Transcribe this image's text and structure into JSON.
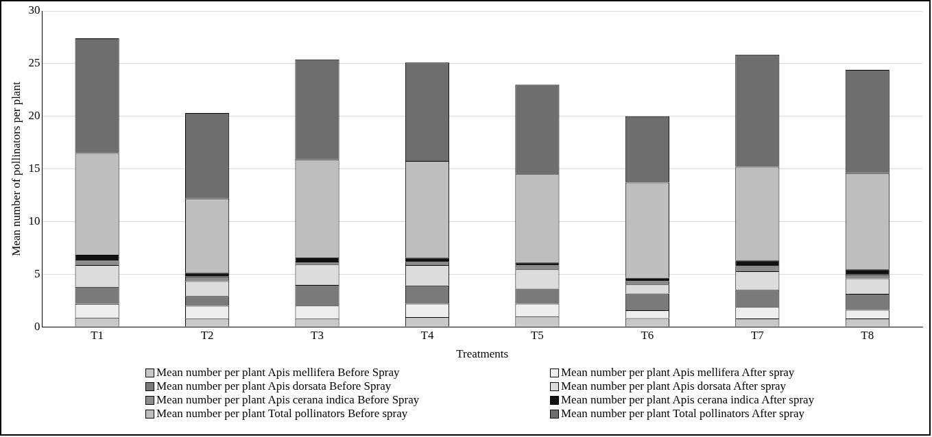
{
  "chart_data": {
    "type": "bar",
    "stacked": true,
    "xlabel": "Treatments",
    "ylabel": "Mean number of pollinators per plant",
    "categories": [
      "T1",
      "T2",
      "T3",
      "T4",
      "T5",
      "T6",
      "T7",
      "T8"
    ],
    "ylim": [
      0,
      30
    ],
    "yticks": [
      0,
      5,
      10,
      15,
      20,
      25,
      30
    ],
    "grid": "y",
    "legend": "bottom",
    "series": [
      {
        "name": "Mean number per plant Apis mellifera Before Spray",
        "color": "#c8c8c8",
        "values": [
          0.87,
          0.78,
          0.78,
          0.92,
          1.0,
          0.83,
          0.8,
          0.8
        ]
      },
      {
        "name": "Mean number per plant Apis mellifera After spray",
        "color": "#eeeeee",
        "values": [
          1.3,
          1.21,
          1.24,
          1.27,
          1.2,
          0.74,
          1.09,
          0.8
        ]
      },
      {
        "name": "Mean number per plant Apis dorsata Before Spray",
        "color": "#7a7a7a",
        "values": [
          1.64,
          0.93,
          1.96,
          1.74,
          1.43,
          1.6,
          1.62,
          1.54
        ]
      },
      {
        "name": "Mean number per plant Apis dorsata After spray",
        "color": "#dcdcdc",
        "values": [
          2.06,
          1.42,
          1.94,
          1.94,
          1.83,
          0.86,
          1.78,
          1.46
        ]
      },
      {
        "name": "Mean number per plant Apis cerana indica Before Spray",
        "color": "#8c8c8c",
        "values": [
          0.43,
          0.43,
          0.28,
          0.29,
          0.37,
          0.31,
          0.48,
          0.37
        ]
      },
      {
        "name": "Mean number per plant Apis cerana indica After spray",
        "color": "#111111",
        "values": [
          0.55,
          0.37,
          0.4,
          0.4,
          0.28,
          0.32,
          0.54,
          0.49
        ]
      },
      {
        "name": "Mean number per plant Total pollinators Before spray",
        "color": "#bebebe",
        "values": [
          9.65,
          7.06,
          9.3,
          9.19,
          8.39,
          9.04,
          8.89,
          9.14
        ]
      },
      {
        "name": "Mean number per plant Total pollinators After spray",
        "color": "#6e6e6e",
        "values": [
          10.9,
          8.1,
          9.5,
          9.35,
          8.5,
          6.3,
          10.65,
          9.8
        ]
      }
    ]
  }
}
